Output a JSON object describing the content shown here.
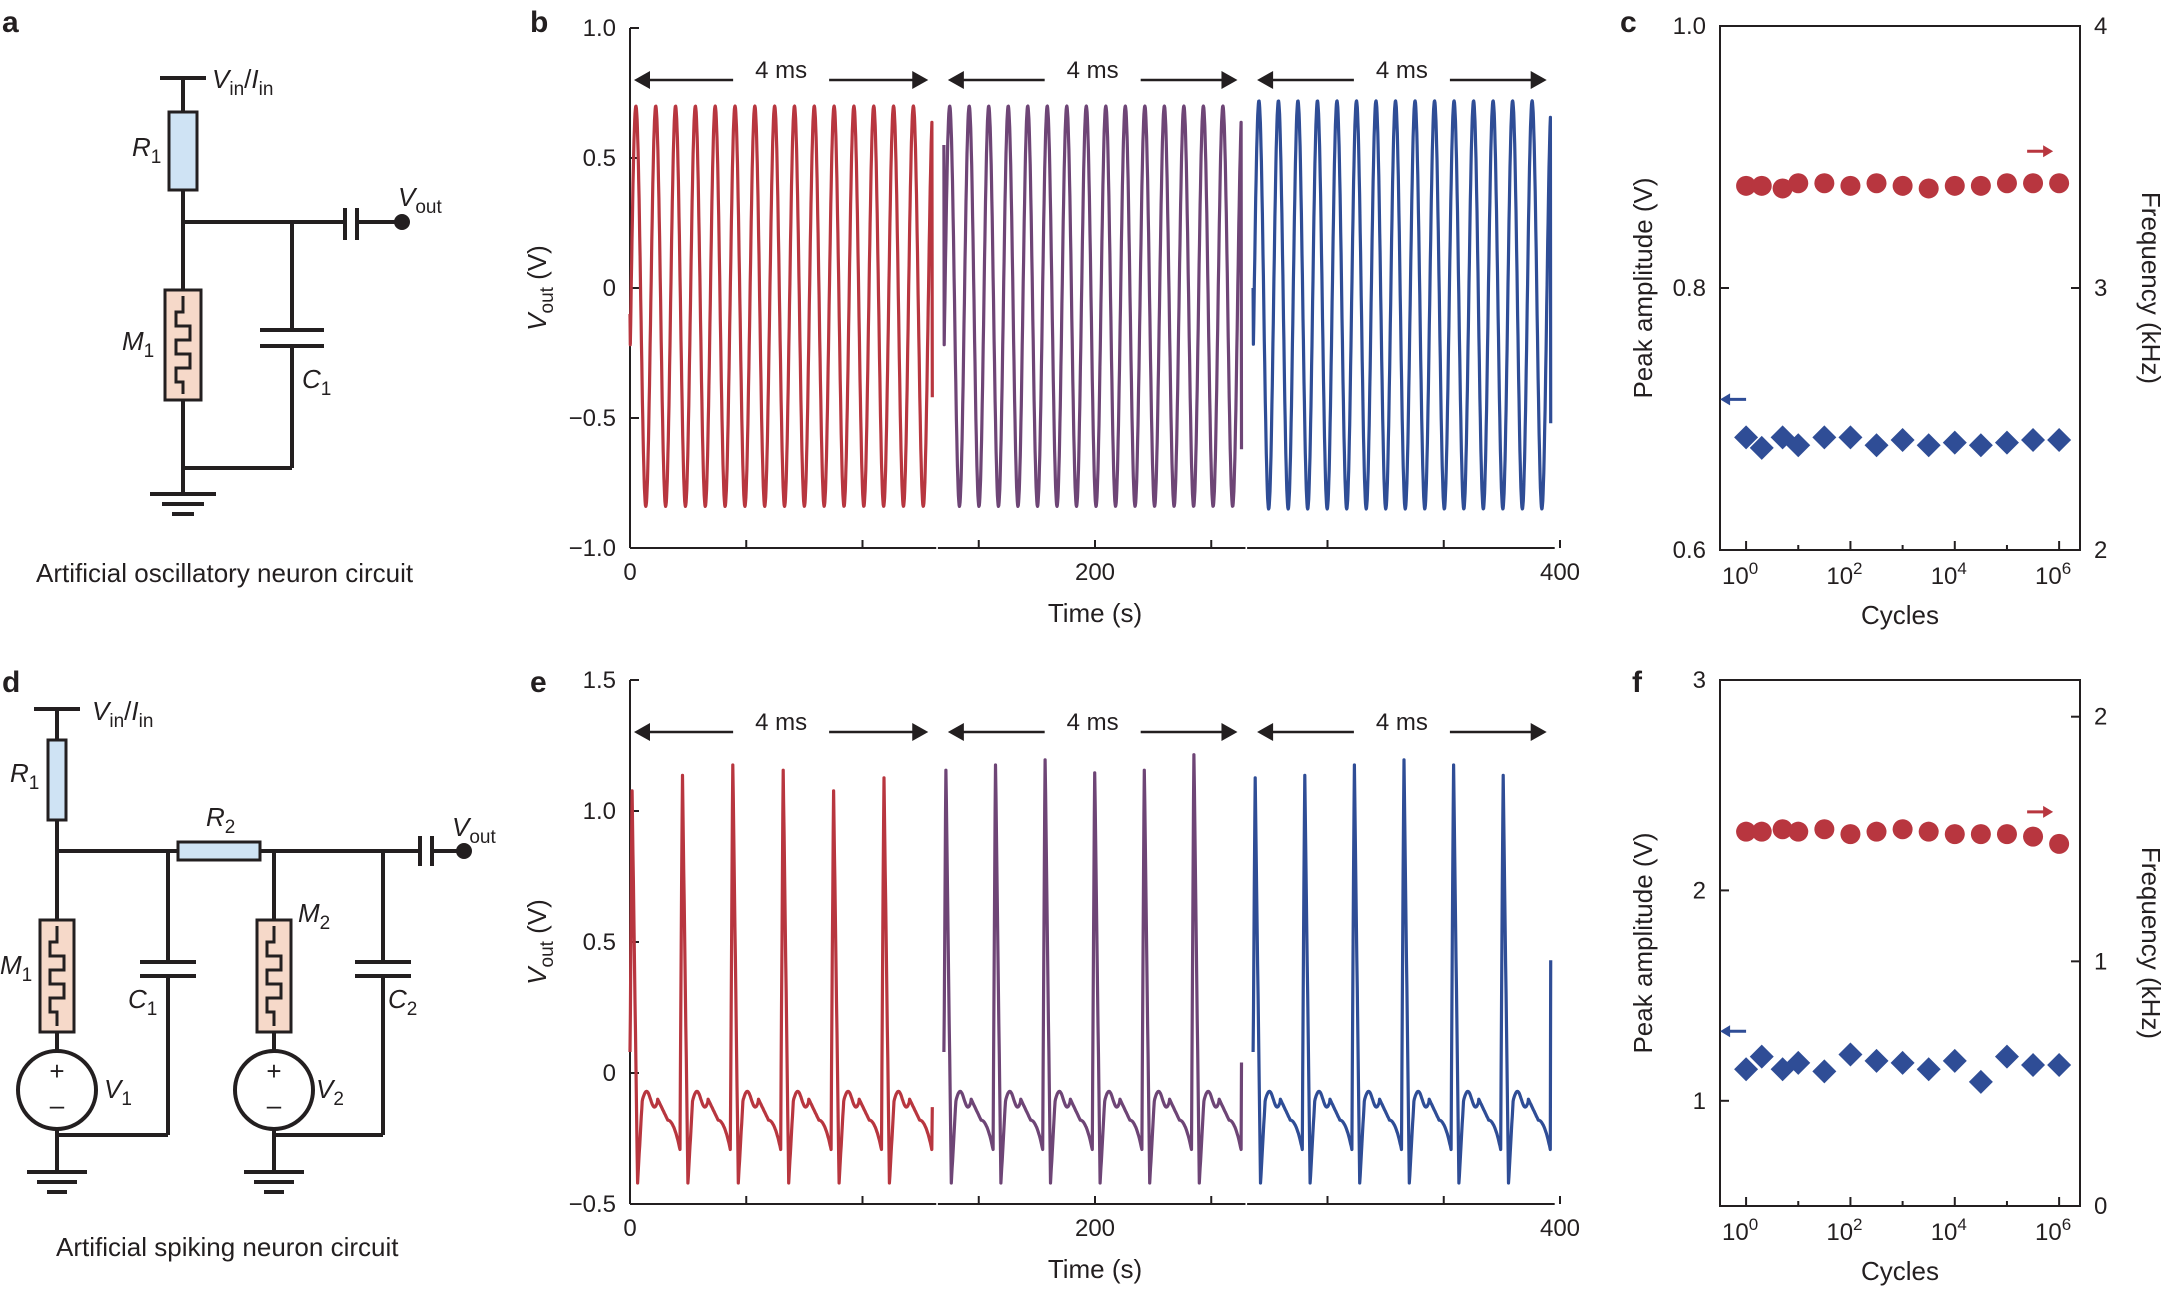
{
  "panels": {
    "a": {
      "letter": "a",
      "caption": "Artificial oscillatory neuron circuit",
      "labels": {
        "vin": "V",
        "vin_sub": "in",
        "slash": "/",
        "iin": "I",
        "iin_sub": "in",
        "r1": "R",
        "r1_sub": "1",
        "m1": "M",
        "m1_sub": "1",
        "c1": "C",
        "c1_sub": "1",
        "vout": "V",
        "vout_sub": "out"
      }
    },
    "d": {
      "letter": "d",
      "caption": "Artificial spiking neuron circuit",
      "labels": {
        "vin": "V",
        "vin_sub": "in",
        "slash": "/",
        "iin": "I",
        "iin_sub": "in",
        "r1": "R",
        "r1_sub": "1",
        "r2": "R",
        "r2_sub": "2",
        "m1": "M",
        "m1_sub": "1",
        "m2": "M",
        "m2_sub": "2",
        "c1": "C",
        "c1_sub": "1",
        "c2": "C",
        "c2_sub": "2",
        "v1": "V",
        "v1_sub": "1",
        "v2": "V",
        "v2_sub": "2",
        "vout": "V",
        "vout_sub": "out",
        "plus": "+",
        "minus": "–"
      }
    },
    "b": {
      "letter": "b"
    },
    "e": {
      "letter": "e"
    },
    "c": {
      "letter": "c"
    },
    "f": {
      "letter": "f"
    }
  },
  "colors": {
    "red": "#b8363f",
    "purple": "#6e4576",
    "blue": "#2f4d96",
    "resistor": "#cfe3f4",
    "memristor": "#f6d9c9",
    "ink": "#231f20"
  },
  "chart_data": [
    {
      "id": "b",
      "type": "line",
      "xlabel": "Time (s)",
      "ylabel": "V",
      "ylabel_sub": "out",
      "ylabel_unit": " (V)",
      "xticks": [
        0,
        200,
        400
      ],
      "yticks": [
        -1.0,
        -0.5,
        0,
        0.5,
        1.0
      ],
      "ytick_labels": [
        "−1.0",
        "−0.5",
        "0",
        "0.5",
        "1.0"
      ],
      "ylim": [
        -1.0,
        1.0
      ],
      "xlim": [
        0,
        400
      ],
      "segment_label": "4 ms",
      "segments": [
        {
          "x_range": [
            0,
            130
          ],
          "color": "#b8363f",
          "cycles": 15,
          "max": 0.7,
          "min": -0.84,
          "start": -0.1,
          "end": -0.42
        },
        {
          "x_range": [
            135,
            263
          ],
          "color": "#6e4576",
          "cycles": 15,
          "max": 0.7,
          "min": -0.84,
          "start": 0.55,
          "end": -0.62
        },
        {
          "x_range": [
            268,
            396
          ],
          "color": "#2f4d96",
          "cycles": 15,
          "max": 0.72,
          "min": -0.85,
          "start": 0.0,
          "end": -0.52
        }
      ]
    },
    {
      "id": "e",
      "type": "line",
      "xlabel": "Time (s)",
      "ylabel": "V",
      "ylabel_sub": "out",
      "ylabel_unit": " (V)",
      "xticks": [
        0,
        200,
        400
      ],
      "yticks": [
        -0.5,
        0,
        0.5,
        1.0,
        1.5
      ],
      "ytick_labels": [
        "−0.5",
        "0",
        "0.5",
        "1.0",
        "1.5"
      ],
      "ylim": [
        -0.5,
        1.5
      ],
      "xlim": [
        0,
        400
      ],
      "segment_label": "4 ms",
      "segments": [
        {
          "x_range": [
            0,
            130
          ],
          "color": "#b8363f",
          "spikes": 6,
          "peaks": [
            1.1,
            1.16,
            1.2,
            1.18,
            1.1,
            1.15
          ],
          "trough": -0.42,
          "baseline": -0.1,
          "end": -0.13
        },
        {
          "x_range": [
            135,
            263
          ],
          "color": "#6e4576",
          "spikes": 6,
          "peaks": [
            1.18,
            1.2,
            1.22,
            1.17,
            1.18,
            1.24
          ],
          "trough": -0.42,
          "baseline": -0.1,
          "end": 0.04
        },
        {
          "x_range": [
            268,
            396
          ],
          "color": "#2f4d96",
          "spikes": 6,
          "peaks": [
            1.15,
            1.16,
            1.2,
            1.22,
            1.2,
            1.16
          ],
          "trough": -0.42,
          "baseline": -0.1,
          "end": 0.43
        }
      ]
    },
    {
      "id": "c",
      "type": "scatter",
      "xlabel": "Cycles",
      "ylabel_left": "Peak amplitude (V)",
      "ylabel_right": "Frequency (kHz)",
      "x_scale": "log",
      "x_exponents": [
        0,
        0.3,
        0.7,
        1,
        1.5,
        2,
        2.5,
        3,
        3.5,
        4,
        4.5,
        5,
        5.5,
        6
      ],
      "xtick_exponents": [
        0,
        2,
        4,
        6
      ],
      "xtick_base": "10",
      "left_ylim": [
        0.6,
        1.0
      ],
      "left_yticks": [
        0.6,
        0.8,
        1.0
      ],
      "left_ytick_labels": [
        "0.6",
        "0.8",
        "1.0"
      ],
      "right_ylim": [
        2,
        4
      ],
      "right_yticks": [
        2,
        3,
        4
      ],
      "right_ytick_labels": [
        "2",
        "3",
        "4"
      ],
      "series": [
        {
          "axis": "right",
          "marker": "circle",
          "color": "#b8363f",
          "values": [
            3.39,
            3.39,
            3.38,
            3.4,
            3.4,
            3.39,
            3.4,
            3.39,
            3.38,
            3.39,
            3.39,
            3.4,
            3.4,
            3.4
          ]
        },
        {
          "axis": "left",
          "marker": "diamond",
          "color": "#2f4d96",
          "values": [
            0.686,
            0.678,
            0.686,
            0.68,
            0.686,
            0.686,
            0.68,
            0.684,
            0.68,
            0.682,
            0.68,
            0.682,
            0.684,
            0.684
          ]
        }
      ]
    },
    {
      "id": "f",
      "type": "scatter",
      "xlabel": "Cycles",
      "ylabel_left": "Peak amplitude (V)",
      "ylabel_right": "Frequency (kHz)",
      "x_scale": "log",
      "x_exponents": [
        0,
        0.3,
        0.7,
        1,
        1.5,
        2,
        2.5,
        3,
        3.5,
        4,
        4.5,
        5,
        5.5,
        6
      ],
      "xtick_exponents": [
        0,
        2,
        4,
        6
      ],
      "xtick_base": "10",
      "left_ylim": [
        0.5,
        3.0
      ],
      "left_yticks": [
        1,
        2,
        3
      ],
      "left_ytick_labels": [
        "1",
        "2",
        "3"
      ],
      "right_ylim": [
        0,
        2.15
      ],
      "right_yticks": [
        0,
        1,
        2
      ],
      "right_ytick_labels": [
        "0",
        "1",
        "2"
      ],
      "series": [
        {
          "axis": "right",
          "marker": "circle",
          "color": "#b8363f",
          "values": [
            1.53,
            1.53,
            1.54,
            1.53,
            1.54,
            1.52,
            1.53,
            1.54,
            1.53,
            1.52,
            1.52,
            1.52,
            1.51,
            1.48
          ]
        },
        {
          "axis": "left",
          "marker": "diamond",
          "color": "#2f4d96",
          "values": [
            1.15,
            1.21,
            1.15,
            1.18,
            1.14,
            1.22,
            1.19,
            1.18,
            1.15,
            1.19,
            1.09,
            1.21,
            1.17,
            1.17
          ]
        }
      ]
    }
  ]
}
